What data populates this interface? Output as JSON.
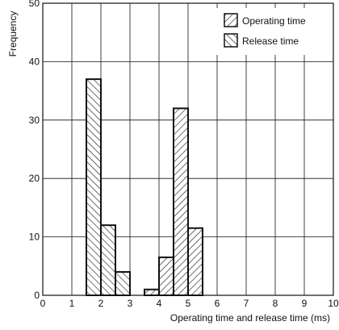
{
  "chart_data": {
    "type": "bar",
    "xlabel": "Operating time and release time (ms)",
    "ylabel": "Frequency",
    "xlim": [
      0,
      10
    ],
    "ylim": [
      0,
      50
    ],
    "x_ticks": [
      0,
      1,
      2,
      3,
      4,
      5,
      6,
      7,
      8,
      9,
      10
    ],
    "y_ticks": [
      0,
      10,
      20,
      30,
      40,
      50
    ],
    "grid": true,
    "legend_position": "top-right",
    "bin_width": 0.5,
    "series": [
      {
        "name": "Release time",
        "hatch": "backslash",
        "bins": [
          {
            "x_start": 1.5,
            "value": 37
          },
          {
            "x_start": 2.0,
            "value": 12
          },
          {
            "x_start": 2.5,
            "value": 4
          }
        ]
      },
      {
        "name": "Operating time",
        "hatch": "slash",
        "bins": [
          {
            "x_start": 3.5,
            "value": 1
          },
          {
            "x_start": 4.0,
            "value": 6.5
          },
          {
            "x_start": 4.5,
            "value": 32
          },
          {
            "x_start": 5.0,
            "value": 11.5
          }
        ]
      }
    ],
    "legend_order": [
      "Operating time",
      "Release time"
    ],
    "colors": {
      "stroke": "#111111",
      "background": "#ffffff"
    }
  }
}
